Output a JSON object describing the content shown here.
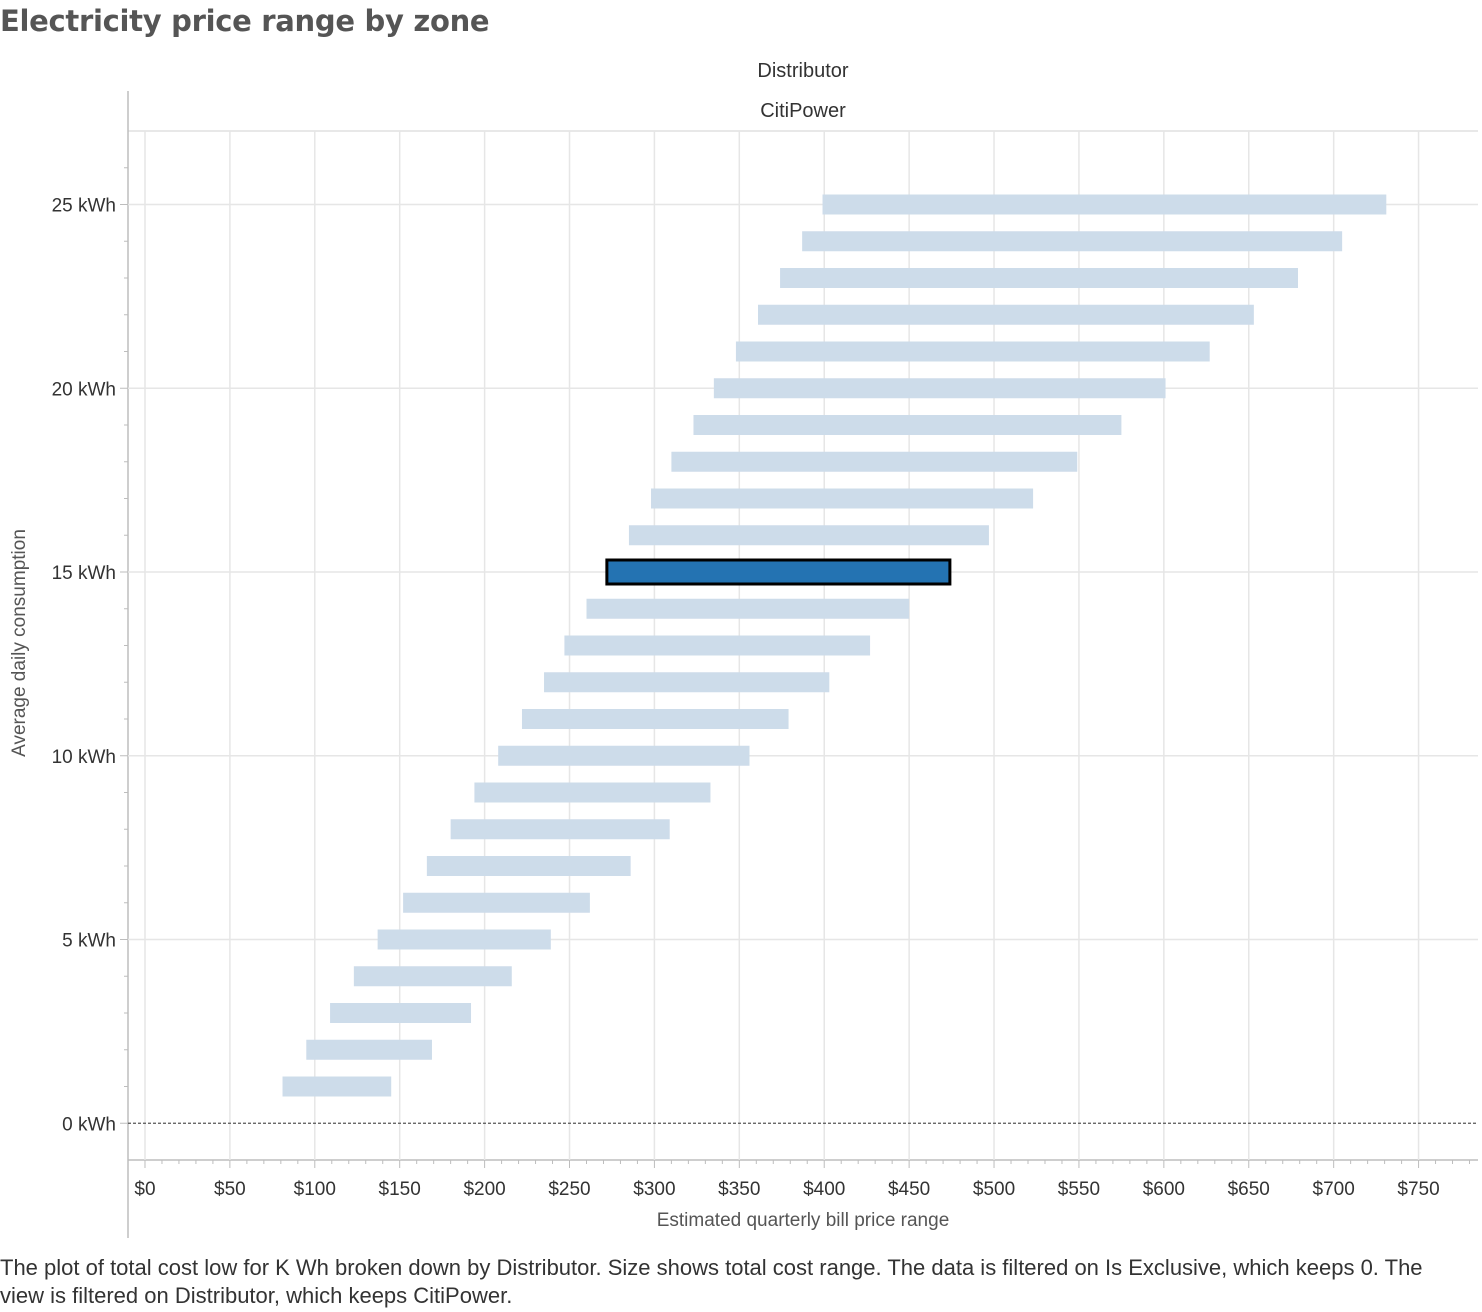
{
  "title": "Electricity price range by zone",
  "facet": {
    "field_label": "Distributor",
    "value": "CitiPower"
  },
  "caption": "The plot of total cost low for K Wh broken down by Distributor.  Size shows total cost range. The data is filtered on Is Exclusive, which keeps 0. The view is filtered on Distributor, which keeps CitiPower.",
  "colors": {
    "bar": "#cddcea",
    "highlight": "#2473b2",
    "highlight_border": "#000000",
    "grid": "#e6e6e6",
    "axis": "#bdbdbd"
  },
  "chart_data": {
    "type": "bar",
    "orientation": "horizontal-range",
    "title": "Electricity price range by zone",
    "xlabel": "Estimated quarterly bill price range",
    "ylabel": "Average daily consumption",
    "xlim": [
      -10,
      785
    ],
    "ylim": [
      -1,
      27
    ],
    "x_ticks": [
      0,
      50,
      100,
      150,
      200,
      250,
      300,
      350,
      400,
      450,
      500,
      550,
      600,
      650,
      700,
      750
    ],
    "x_tick_labels": [
      "$0",
      "$50",
      "$100",
      "$150",
      "$200",
      "$250",
      "$300",
      "$350",
      "$400",
      "$450",
      "$500",
      "$550",
      "$600",
      "$650",
      "$700",
      "$750"
    ],
    "y_ticks": [
      0,
      5,
      10,
      15,
      20,
      25
    ],
    "y_tick_labels": [
      "0 kWh",
      "5 kWh",
      "10 kWh",
      "15 kWh",
      "20 kWh",
      "25 kWh"
    ],
    "grid": true,
    "zero_line": "dashed",
    "highlighted_kwh": 15,
    "bars": [
      {
        "kwh": 1,
        "low": 81,
        "high": 145
      },
      {
        "kwh": 2,
        "low": 95,
        "high": 169
      },
      {
        "kwh": 3,
        "low": 109,
        "high": 192
      },
      {
        "kwh": 4,
        "low": 123,
        "high": 216
      },
      {
        "kwh": 5,
        "low": 137,
        "high": 239
      },
      {
        "kwh": 6,
        "low": 152,
        "high": 262
      },
      {
        "kwh": 7,
        "low": 166,
        "high": 286
      },
      {
        "kwh": 8,
        "low": 180,
        "high": 309
      },
      {
        "kwh": 9,
        "low": 194,
        "high": 333
      },
      {
        "kwh": 10,
        "low": 208,
        "high": 356
      },
      {
        "kwh": 11,
        "low": 222,
        "high": 379
      },
      {
        "kwh": 12,
        "low": 235,
        "high": 403
      },
      {
        "kwh": 13,
        "low": 247,
        "high": 427
      },
      {
        "kwh": 14,
        "low": 260,
        "high": 450
      },
      {
        "kwh": 15,
        "low": 272,
        "high": 474
      },
      {
        "kwh": 16,
        "low": 285,
        "high": 497
      },
      {
        "kwh": 17,
        "low": 298,
        "high": 523
      },
      {
        "kwh": 18,
        "low": 310,
        "high": 549
      },
      {
        "kwh": 19,
        "low": 323,
        "high": 575
      },
      {
        "kwh": 20,
        "low": 335,
        "high": 601
      },
      {
        "kwh": 21,
        "low": 348,
        "high": 627
      },
      {
        "kwh": 22,
        "low": 361,
        "high": 653
      },
      {
        "kwh": 23,
        "low": 374,
        "high": 679
      },
      {
        "kwh": 24,
        "low": 387,
        "high": 705
      },
      {
        "kwh": 25,
        "low": 399,
        "high": 731
      }
    ]
  }
}
